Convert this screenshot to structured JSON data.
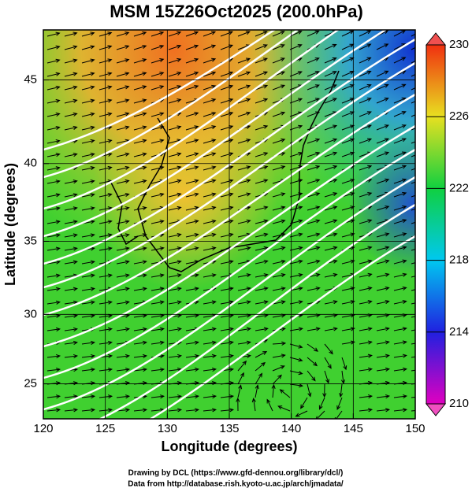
{
  "title": "MSM 15Z26Oct2025 (200.0hPa)",
  "x_axis": {
    "label": "Longitude (degrees)",
    "lim": [
      120,
      150
    ],
    "ticks": [
      120,
      125,
      130,
      135,
      140,
      145,
      150
    ]
  },
  "y_axis": {
    "label": "Latitude (degrees)",
    "lim": [
      22.4,
      47.8
    ],
    "ticks": [
      25,
      30,
      35,
      40,
      45
    ],
    "projection": "mercator"
  },
  "colorbar": {
    "lim": [
      210,
      230
    ],
    "ticks": [
      210,
      214,
      218,
      222,
      226,
      230
    ]
  },
  "credits": [
    "Drawing by DCL (https://www.gfd-dennou.org/library/dcl/)",
    "Data from http://database.rish.kyoto-u.ac.jp/arch/jmadata/"
  ]
}
